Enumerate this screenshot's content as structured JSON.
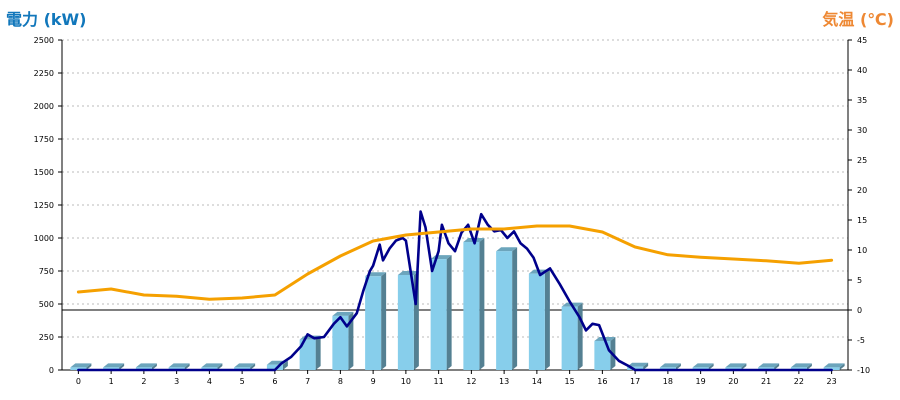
{
  "chart_data": {
    "type": "bar",
    "left_axis": {
      "title": "電力 (kW)",
      "color": "#1177bb",
      "range": [
        0,
        2500
      ],
      "ticks": [
        0,
        250,
        500,
        750,
        1000,
        1250,
        1500,
        1750,
        2000,
        2250,
        2500
      ]
    },
    "right_axis": {
      "title": "気温 (℃)",
      "color": "#ee8833",
      "range": [
        -10,
        45
      ],
      "ticks": [
        -10,
        -5,
        0,
        5,
        10,
        15,
        20,
        25,
        30,
        35,
        40,
        45
      ]
    },
    "categories": [
      "0",
      "1",
      "2",
      "3",
      "4",
      "5",
      "6",
      "7",
      "8",
      "9",
      "10",
      "11",
      "12",
      "13",
      "14",
      "15",
      "16",
      "17",
      "18",
      "19",
      "20",
      "21",
      "22",
      "23"
    ],
    "grid": true,
    "series": [
      {
        "kind": "bar",
        "axis": "left",
        "color": "#87ceeb",
        "values": [
          20,
          20,
          20,
          20,
          20,
          20,
          40,
          230,
          410,
          710,
          720,
          840,
          970,
          900,
          730,
          480,
          220,
          25,
          20,
          20,
          20,
          20,
          20,
          20
        ]
      },
      {
        "kind": "line",
        "axis": "left",
        "color": "#00008b",
        "x": [
          0,
          6,
          6.2,
          6.5,
          6.8,
          7.0,
          7.2,
          7.5,
          7.8,
          8.0,
          8.2,
          8.5,
          8.7,
          8.9,
          9.0,
          9.2,
          9.3,
          9.5,
          9.7,
          9.9,
          10.0,
          10.3,
          10.45,
          10.6,
          10.8,
          11.0,
          11.1,
          11.3,
          11.5,
          11.7,
          11.9,
          12.1,
          12.3,
          12.5,
          12.7,
          12.9,
          13.1,
          13.3,
          13.5,
          13.7,
          13.9,
          14.1,
          14.4,
          14.7,
          15.0,
          15.3,
          15.5,
          15.7,
          15.9,
          16.2,
          16.5,
          16.8,
          17.0,
          23
        ],
        "values": [
          0,
          0,
          50,
          100,
          180,
          270,
          240,
          250,
          350,
          400,
          330,
          430,
          600,
          750,
          790,
          950,
          830,
          920,
          980,
          1000,
          980,
          500,
          1200,
          1080,
          750,
          900,
          1100,
          960,
          900,
          1040,
          1100,
          960,
          1180,
          1100,
          1050,
          1060,
          1000,
          1050,
          960,
          920,
          850,
          720,
          770,
          650,
          520,
          400,
          300,
          350,
          340,
          150,
          70,
          30,
          0,
          0
        ]
      },
      {
        "kind": "line",
        "axis": "right",
        "color": "#f5a000",
        "x": [
          0,
          1,
          2,
          3,
          4,
          5,
          6,
          7,
          8,
          9,
          10,
          11,
          12,
          13,
          14,
          15,
          16,
          17,
          18,
          19,
          20,
          21,
          22,
          23
        ],
        "values": [
          3,
          3.5,
          2.5,
          2.3,
          1.8,
          2,
          2.5,
          6,
          9,
          11.5,
          12.5,
          13,
          13.5,
          13.5,
          14,
          14,
          13,
          10.5,
          9.2,
          8.8,
          8.5,
          8.2,
          7.8,
          8.3
        ]
      }
    ]
  }
}
